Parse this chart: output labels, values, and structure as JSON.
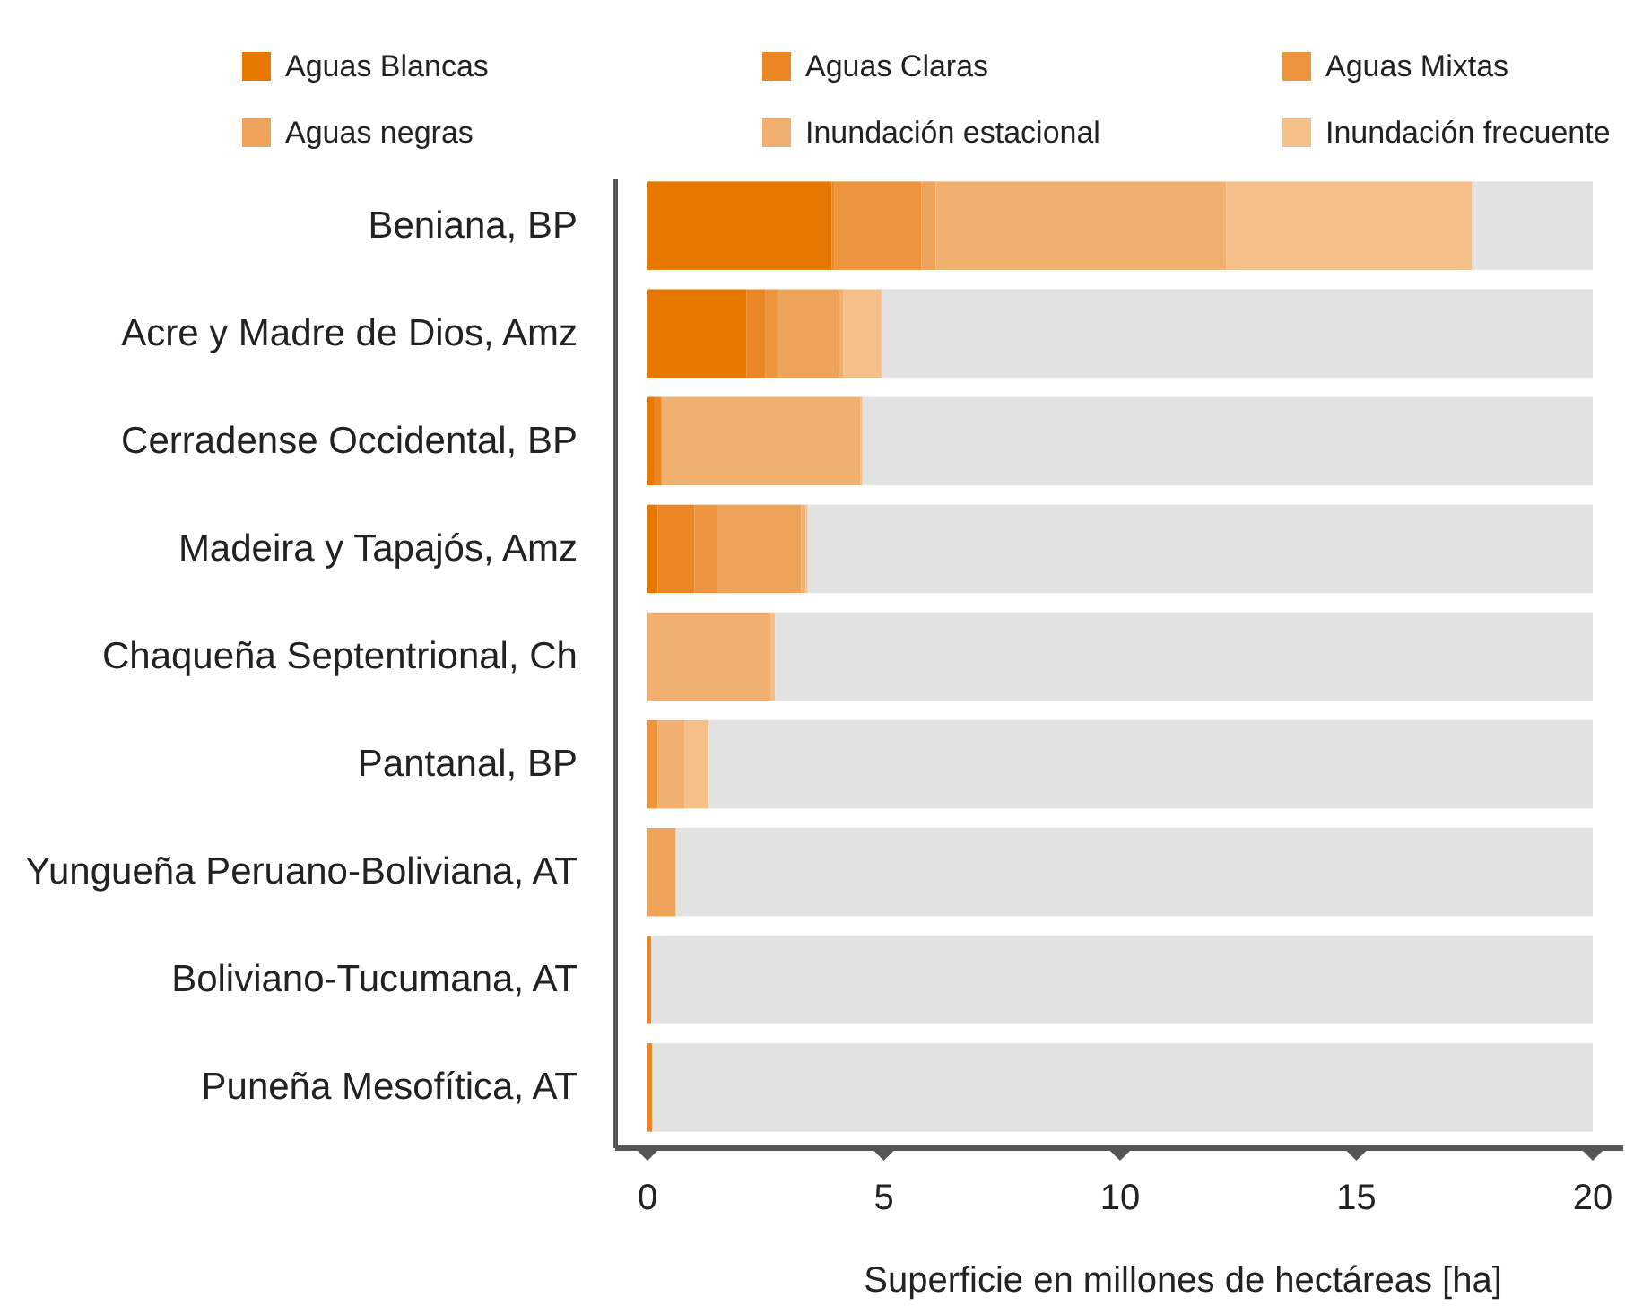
{
  "chart_data": {
    "type": "bar",
    "orientation": "horizontal",
    "stacked": true,
    "xlabel": "Superficie en millones de hectáreas [ha]",
    "categories": [
      "Beniana, BP",
      "Acre y Madre de Dios, Amz",
      "Cerradense Occidental, BP",
      "Madeira y Tapajós, Amz",
      "Chaqueña Septentrional, Ch",
      "Pantanal, BP",
      "Yungueña Peruano-Boliviana, AT",
      "Boliviano-Tucumana, AT",
      "Puneña Mesofítica, AT"
    ],
    "series": [
      {
        "name": "Aguas Blancas",
        "color": "#e67800",
        "values": [
          3.9,
          2.1,
          0.15,
          0.22,
          0,
          0,
          0,
          0,
          0
        ]
      },
      {
        "name": "Aguas Claras",
        "color": "#ea8624",
        "values": [
          0.05,
          0.4,
          0.15,
          0.78,
          0,
          0,
          0,
          0.08,
          0.1
        ]
      },
      {
        "name": "Aguas Mixtas",
        "color": "#ec953e",
        "values": [
          1.85,
          0.25,
          0,
          0.48,
          0,
          0.22,
          0,
          0,
          0
        ]
      },
      {
        "name": "Aguas negras",
        "color": "#eea35a",
        "values": [
          0.3,
          1.3,
          0,
          1.77,
          0,
          0,
          0.6,
          0,
          0
        ]
      },
      {
        "name": "Inundación estacional",
        "color": "#f1b070",
        "values": [
          6.15,
          0.1,
          4.2,
          0.1,
          2.6,
          0.56,
          0,
          0,
          0
        ]
      },
      {
        "name": "Inundación frecuente",
        "color": "#f4bf88",
        "values": [
          5.2,
          0.8,
          0.05,
          0.04,
          0.1,
          0.52,
          0,
          0,
          0
        ]
      },
      {
        "color": "#e2e2e2",
        "values": [
          2.55,
          15.05,
          15.45,
          16.61,
          17.3,
          18.7,
          19.4,
          19.92,
          19.9
        ]
      }
    ],
    "xlim": [
      0,
      20
    ],
    "xticks": [
      0,
      5,
      10,
      15,
      20
    ],
    "grid": false,
    "legend": "top"
  }
}
